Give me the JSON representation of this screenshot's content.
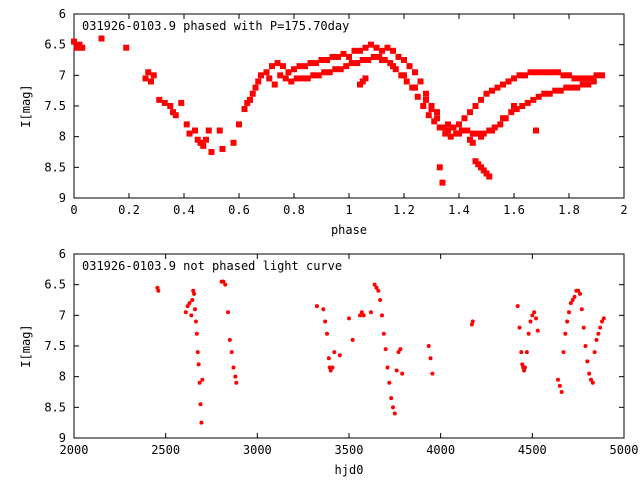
{
  "chart_data": [
    {
      "type": "scatter",
      "title": "031926-0103.9 phased with P=175.70day",
      "xlabel": "phase",
      "ylabel": "I[mag]",
      "xlim": [
        0,
        2
      ],
      "ylim": [
        9,
        6
      ],
      "y_inverted": true,
      "xticks": [
        0,
        0.2,
        0.4,
        0.6,
        0.8,
        1,
        1.2,
        1.4,
        1.6,
        1.8,
        2
      ],
      "yticks": [
        6,
        6.5,
        7,
        7.5,
        8,
        8.5,
        9
      ],
      "xtick_labels": [
        "0",
        "0.2",
        "0.4",
        "0.6",
        "0.8",
        "1",
        "1.2",
        "1.4",
        "1.6",
        "1.8",
        "2"
      ],
      "ytick_labels": [
        "6",
        "6.5",
        "7",
        "7.5",
        "8",
        "8.5",
        "9"
      ],
      "grid": false,
      "marker_color": "#ff0000",
      "marker": "square",
      "x": [
        0.0,
        0.01,
        0.02,
        0.03,
        0.1,
        0.19,
        0.26,
        0.27,
        0.28,
        0.29,
        0.31,
        0.33,
        0.35,
        0.36,
        0.37,
        0.39,
        0.41,
        0.42,
        0.44,
        0.45,
        0.46,
        0.47,
        0.48,
        0.49,
        0.5,
        0.53,
        0.54,
        0.58,
        0.6,
        0.62,
        0.63,
        0.64,
        0.65,
        0.66,
        0.67,
        0.68,
        0.7,
        0.71,
        0.72,
        0.74,
        0.76,
        0.78,
        0.8,
        0.82,
        0.84,
        0.86,
        0.88,
        0.9,
        0.92,
        0.94,
        0.96,
        0.98,
        1.0,
        1.02,
        1.04,
        1.06,
        1.08,
        1.1,
        1.12,
        1.14,
        1.16,
        1.18,
        1.2,
        1.22,
        1.24,
        1.26,
        1.28,
        1.3,
        1.32,
        1.34,
        1.36,
        1.38,
        1.4,
        1.42,
        1.44,
        1.46,
        1.48,
        1.5,
        1.52,
        1.54,
        1.56,
        1.58,
        1.6,
        1.62,
        1.64,
        1.66,
        1.68,
        1.7,
        1.72,
        1.74,
        1.76,
        1.78,
        1.8,
        1.82,
        1.84,
        1.86,
        1.88,
        1.9,
        1.92,
        0.73,
        0.75,
        0.77,
        0.79,
        0.81,
        0.83,
        0.85,
        0.87,
        0.89,
        0.91,
        0.93,
        0.95,
        0.97,
        0.99,
        1.01,
        1.03,
        1.05,
        1.07,
        1.09,
        1.11,
        1.13,
        1.15,
        1.17,
        1.19,
        1.21,
        1.23,
        1.25,
        1.27,
        1.29,
        1.31,
        1.33,
        1.35,
        1.37,
        1.39,
        1.41,
        1.43,
        1.45,
        1.47,
        1.49,
        1.51,
        1.53,
        1.55,
        1.57,
        1.59,
        1.61,
        1.63,
        1.65,
        1.67,
        1.69,
        1.71,
        1.73,
        1.75,
        1.77,
        1.79,
        1.81,
        1.83,
        1.85,
        1.87,
        1.89,
        1.12,
        1.16,
        1.2,
        1.24,
        1.28,
        1.32,
        1.36,
        1.4,
        1.44,
        1.48,
        1.52,
        1.56,
        1.6,
        1.3,
        1.33,
        1.34,
        1.45,
        1.46,
        1.47,
        1.48,
        1.49,
        1.5,
        1.51,
        1.04,
        1.05,
        1.06,
        1.68
      ],
      "y": [
        6.45,
        6.55,
        6.5,
        6.55,
        6.4,
        6.55,
        7.05,
        6.95,
        7.1,
        7.0,
        7.4,
        7.45,
        7.5,
        7.6,
        7.65,
        7.45,
        7.8,
        7.95,
        7.9,
        8.05,
        8.1,
        8.15,
        8.05,
        7.9,
        8.25,
        7.9,
        8.2,
        8.1,
        7.8,
        7.55,
        7.45,
        7.4,
        7.3,
        7.2,
        7.1,
        7.0,
        6.95,
        7.05,
        6.85,
        6.8,
        6.85,
        6.95,
        6.9,
        6.85,
        6.85,
        6.8,
        6.8,
        6.75,
        6.75,
        6.7,
        6.7,
        6.65,
        6.7,
        6.6,
        6.6,
        6.55,
        6.5,
        6.55,
        6.6,
        6.55,
        6.6,
        6.7,
        6.75,
        6.85,
        6.95,
        7.1,
        7.3,
        7.5,
        7.7,
        7.85,
        7.9,
        7.85,
        7.8,
        7.7,
        7.6,
        7.5,
        7.4,
        7.3,
        7.25,
        7.2,
        7.15,
        7.1,
        7.05,
        7.0,
        7.0,
        6.95,
        6.95,
        6.95,
        6.95,
        6.95,
        6.95,
        7.0,
        7.0,
        7.05,
        7.05,
        7.05,
        7.05,
        7.0,
        7.0,
        7.15,
        7.0,
        7.05,
        7.1,
        7.05,
        7.05,
        7.05,
        7.0,
        7.0,
        6.95,
        6.95,
        6.9,
        6.9,
        6.85,
        6.8,
        6.8,
        6.75,
        6.75,
        6.7,
        6.7,
        6.75,
        6.8,
        6.9,
        7.0,
        7.1,
        7.2,
        7.35,
        7.5,
        7.65,
        7.75,
        7.85,
        7.95,
        8.0,
        7.95,
        7.9,
        7.9,
        7.95,
        7.95,
        7.95,
        7.9,
        7.85,
        7.8,
        7.7,
        7.6,
        7.55,
        7.5,
        7.45,
        7.4,
        7.35,
        7.3,
        7.3,
        7.25,
        7.25,
        7.2,
        7.2,
        7.2,
        7.15,
        7.15,
        7.1,
        6.75,
        6.85,
        7.0,
        7.2,
        7.4,
        7.6,
        7.8,
        7.95,
        8.05,
        8.0,
        7.9,
        7.7,
        7.5,
        7.55,
        8.5,
        8.75,
        8.1,
        8.4,
        8.45,
        8.5,
        8.55,
        8.6,
        8.65,
        7.15,
        7.1,
        7.05,
        7.9
      ]
    },
    {
      "type": "scatter",
      "title": "031926-0103.9 not phased light curve",
      "xlabel": "hjd0",
      "ylabel": "I[mag]",
      "xlim": [
        2000,
        5000
      ],
      "ylim": [
        9,
        6
      ],
      "y_inverted": true,
      "xticks": [
        2000,
        2500,
        3000,
        3500,
        4000,
        4500,
        5000
      ],
      "yticks": [
        6,
        6.5,
        7,
        7.5,
        8,
        8.5,
        9
      ],
      "xtick_labels": [
        "2000",
        "2500",
        "3000",
        "3500",
        "4000",
        "4500",
        "5000"
      ],
      "ytick_labels": [
        "6",
        "6.5",
        "7",
        "7.5",
        "8",
        "8.5",
        "9"
      ],
      "grid": false,
      "marker_color": "#ff0000",
      "marker": "dot",
      "x": [
        2455,
        2460,
        2610,
        2620,
        2630,
        2640,
        2645,
        2650,
        2655,
        2660,
        2665,
        2670,
        2675,
        2680,
        2685,
        2690,
        2695,
        2700,
        2805,
        2815,
        2825,
        2840,
        2850,
        2860,
        2870,
        2880,
        2885,
        3325,
        3360,
        3370,
        3380,
        3390,
        3395,
        3400,
        3410,
        3420,
        3450,
        3500,
        3520,
        3560,
        3570,
        3580,
        3620,
        3640,
        3650,
        3660,
        3670,
        3680,
        3690,
        3700,
        3710,
        3720,
        3730,
        3740,
        3750,
        3760,
        3770,
        3780,
        3790,
        3935,
        3945,
        3955,
        4170,
        4175,
        4420,
        4430,
        4440,
        4445,
        4450,
        4455,
        4460,
        4470,
        4480,
        4490,
        4500,
        4510,
        4520,
        4530,
        4640,
        4650,
        4660,
        4670,
        4680,
        4690,
        4700,
        4710,
        4720,
        4730,
        4740,
        4750,
        4760,
        4770,
        4780,
        4790,
        4800,
        4810,
        4820,
        4830,
        4840,
        4850,
        4860,
        4870,
        4880,
        4890
      ],
      "y": [
        6.55,
        6.6,
        6.95,
        6.85,
        6.8,
        7.0,
        6.75,
        6.6,
        6.65,
        6.9,
        7.1,
        7.3,
        7.6,
        7.8,
        8.1,
        8.45,
        8.75,
        8.05,
        6.45,
        6.45,
        6.5,
        6.95,
        7.4,
        7.6,
        7.85,
        8.0,
        8.1,
        6.85,
        6.9,
        7.1,
        7.3,
        7.7,
        7.85,
        7.9,
        7.85,
        7.6,
        7.65,
        7.05,
        7.4,
        7.0,
        6.95,
        7.0,
        6.95,
        6.5,
        6.55,
        6.6,
        6.75,
        7.0,
        7.3,
        7.55,
        7.85,
        8.1,
        8.35,
        8.5,
        8.6,
        7.9,
        7.6,
        7.55,
        7.95,
        7.5,
        7.7,
        7.95,
        7.15,
        7.1,
        6.85,
        7.2,
        7.6,
        7.8,
        7.85,
        7.9,
        7.85,
        7.6,
        7.3,
        7.1,
        7.0,
        6.95,
        7.05,
        7.25,
        8.05,
        8.15,
        8.25,
        7.6,
        7.3,
        7.1,
        6.95,
        6.8,
        6.75,
        6.7,
        6.6,
        6.6,
        6.65,
        6.9,
        7.2,
        7.5,
        7.75,
        7.95,
        8.05,
        8.1,
        7.6,
        7.4,
        7.3,
        7.2,
        7.1,
        7.05
      ]
    }
  ]
}
